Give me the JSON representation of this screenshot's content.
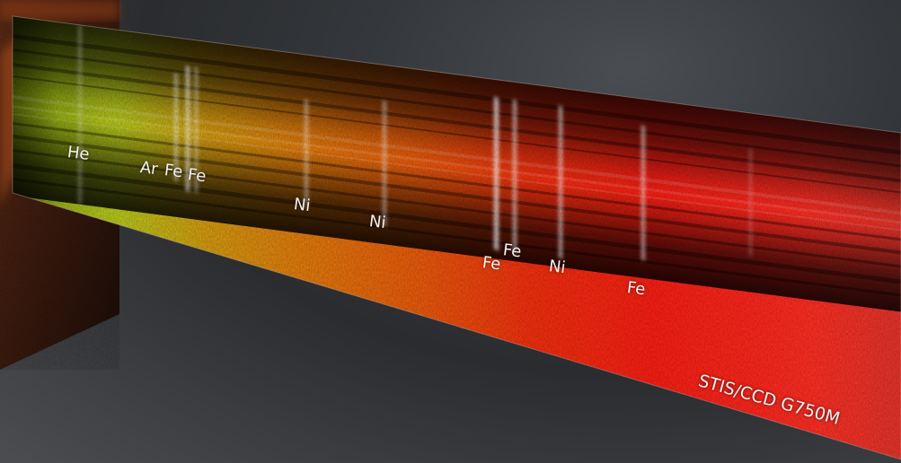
{
  "lines": [
    {
      "id": "he",
      "text": "He"
    },
    {
      "id": "ar",
      "text": "Ar"
    },
    {
      "id": "fe1",
      "text": "Fe"
    },
    {
      "id": "fe2",
      "text": "Fe"
    },
    {
      "id": "ni1",
      "text": "Ni"
    },
    {
      "id": "ni2",
      "text": "Ni"
    },
    {
      "id": "fe3",
      "text": "Fe"
    },
    {
      "id": "fe4",
      "text": "Fe"
    },
    {
      "id": "ni3",
      "text": "Ni"
    },
    {
      "id": "fe5",
      "text": "Fe"
    }
  ],
  "instrument": "STIS/CCD G750M",
  "colors": {
    "spectrum_blue_end": "#b8d020",
    "spectrum_mid": "#f07a10",
    "spectrum_red_end": "#ff2018",
    "background": "#2e3033"
  }
}
